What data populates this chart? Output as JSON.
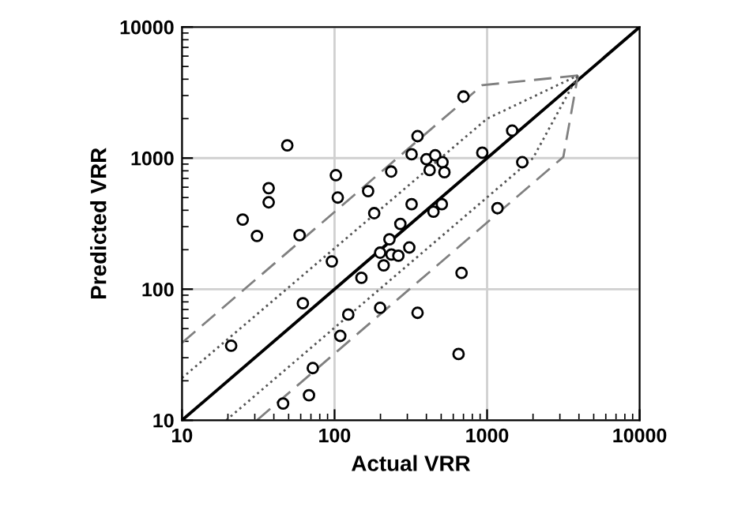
{
  "chart_data": {
    "type": "scatter",
    "xlabel": "Actual VRR",
    "ylabel": "Predicted VRR",
    "log": "xy",
    "grid": true,
    "xlim": [
      10,
      10000
    ],
    "ylim": [
      10,
      10000
    ],
    "xticks": [
      10,
      100,
      1000,
      10000
    ],
    "yticks": [
      10,
      100,
      1000,
      10000
    ],
    "series": [
      {
        "type": "line",
        "color": "#000000",
        "line_style": "solid",
        "marker": "none",
        "x": [
          10,
          10000
        ],
        "values": [
          10,
          10000
        ]
      },
      {
        "type": "line",
        "color": "#808080",
        "line_style": "dashed",
        "marker": "none",
        "x": [
          10,
          930,
          3940
        ],
        "values": [
          39,
          3600,
          4270
        ]
      },
      {
        "type": "line",
        "color": "#808080",
        "line_style": "dashed",
        "marker": "none",
        "x": [
          31,
          3160,
          3940
        ],
        "values": [
          10,
          1020,
          4270
        ]
      },
      {
        "type": "line",
        "color": "#555555",
        "line_style": "dotted",
        "marker": "none",
        "x": [
          10,
          1000,
          3940
        ],
        "values": [
          21,
          2000,
          4270
        ]
      },
      {
        "type": "line",
        "color": "#555555",
        "line_style": "dotted",
        "marker": "none",
        "x": [
          19.5,
          2000,
          3940
        ],
        "values": [
          10,
          1000,
          4270
        ]
      },
      {
        "color": "#ffffff",
        "marker": "circle",
        "x": [
          49,
          37,
          37,
          25,
          31,
          102,
          105,
          166,
          235,
          182,
          59,
          96,
          199,
          210,
          150,
          229,
          236,
          262,
          270,
          309,
          62,
          123,
          109,
          199,
          21,
          72,
          68,
          46,
          700,
          350,
          320,
          400,
          457,
          510,
          420,
          525,
          930,
          1460,
          1700,
          320,
          445,
          505,
          1170,
          680,
          350,
          650
        ],
        "values": [
          1250,
          590,
          460,
          340,
          255,
          740,
          500,
          560,
          790,
          380,
          258,
          163,
          190,
          152,
          122,
          240,
          184,
          180,
          315,
          208,
          78,
          64,
          44,
          72,
          37,
          25,
          15.5,
          13.4,
          2950,
          1470,
          1070,
          980,
          1050,
          930,
          810,
          780,
          1100,
          1620,
          930,
          445,
          390,
          445,
          415,
          133,
          66,
          32
        ]
      }
    ]
  }
}
